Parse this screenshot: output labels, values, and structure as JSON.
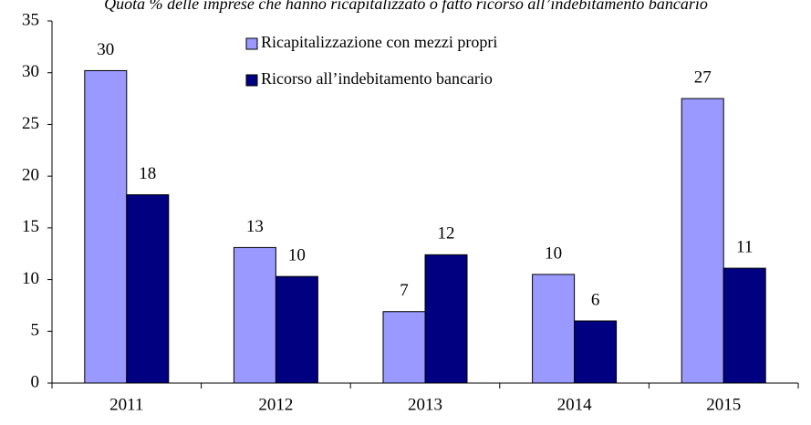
{
  "chart_data": {
    "type": "bar",
    "title": "Quota % delle imprese che hanno ricapitalizzato o fatto ricorso all’indebitamento bancario",
    "categories": [
      "2011",
      "2012",
      "2013",
      "2014",
      "2015"
    ],
    "series": [
      {
        "name": "Ricapitalizzazione con mezzi propri",
        "color": "#9999ff",
        "values": [
          30.2,
          13.1,
          6.9,
          10.5,
          27.5
        ],
        "value_labels": [
          "30",
          "13",
          "7",
          "10",
          "27"
        ]
      },
      {
        "name": "Ricorso all’indebitamento bancario",
        "color": "#000080",
        "values": [
          18.2,
          10.3,
          12.4,
          6.0,
          11.1
        ],
        "value_labels": [
          "18",
          "10",
          "12",
          "6",
          "11"
        ]
      }
    ],
    "ylim": [
      0,
      35
    ],
    "yticks": [
      0,
      5,
      10,
      15,
      20,
      25,
      30,
      35
    ],
    "grid": false,
    "legend": "top"
  }
}
